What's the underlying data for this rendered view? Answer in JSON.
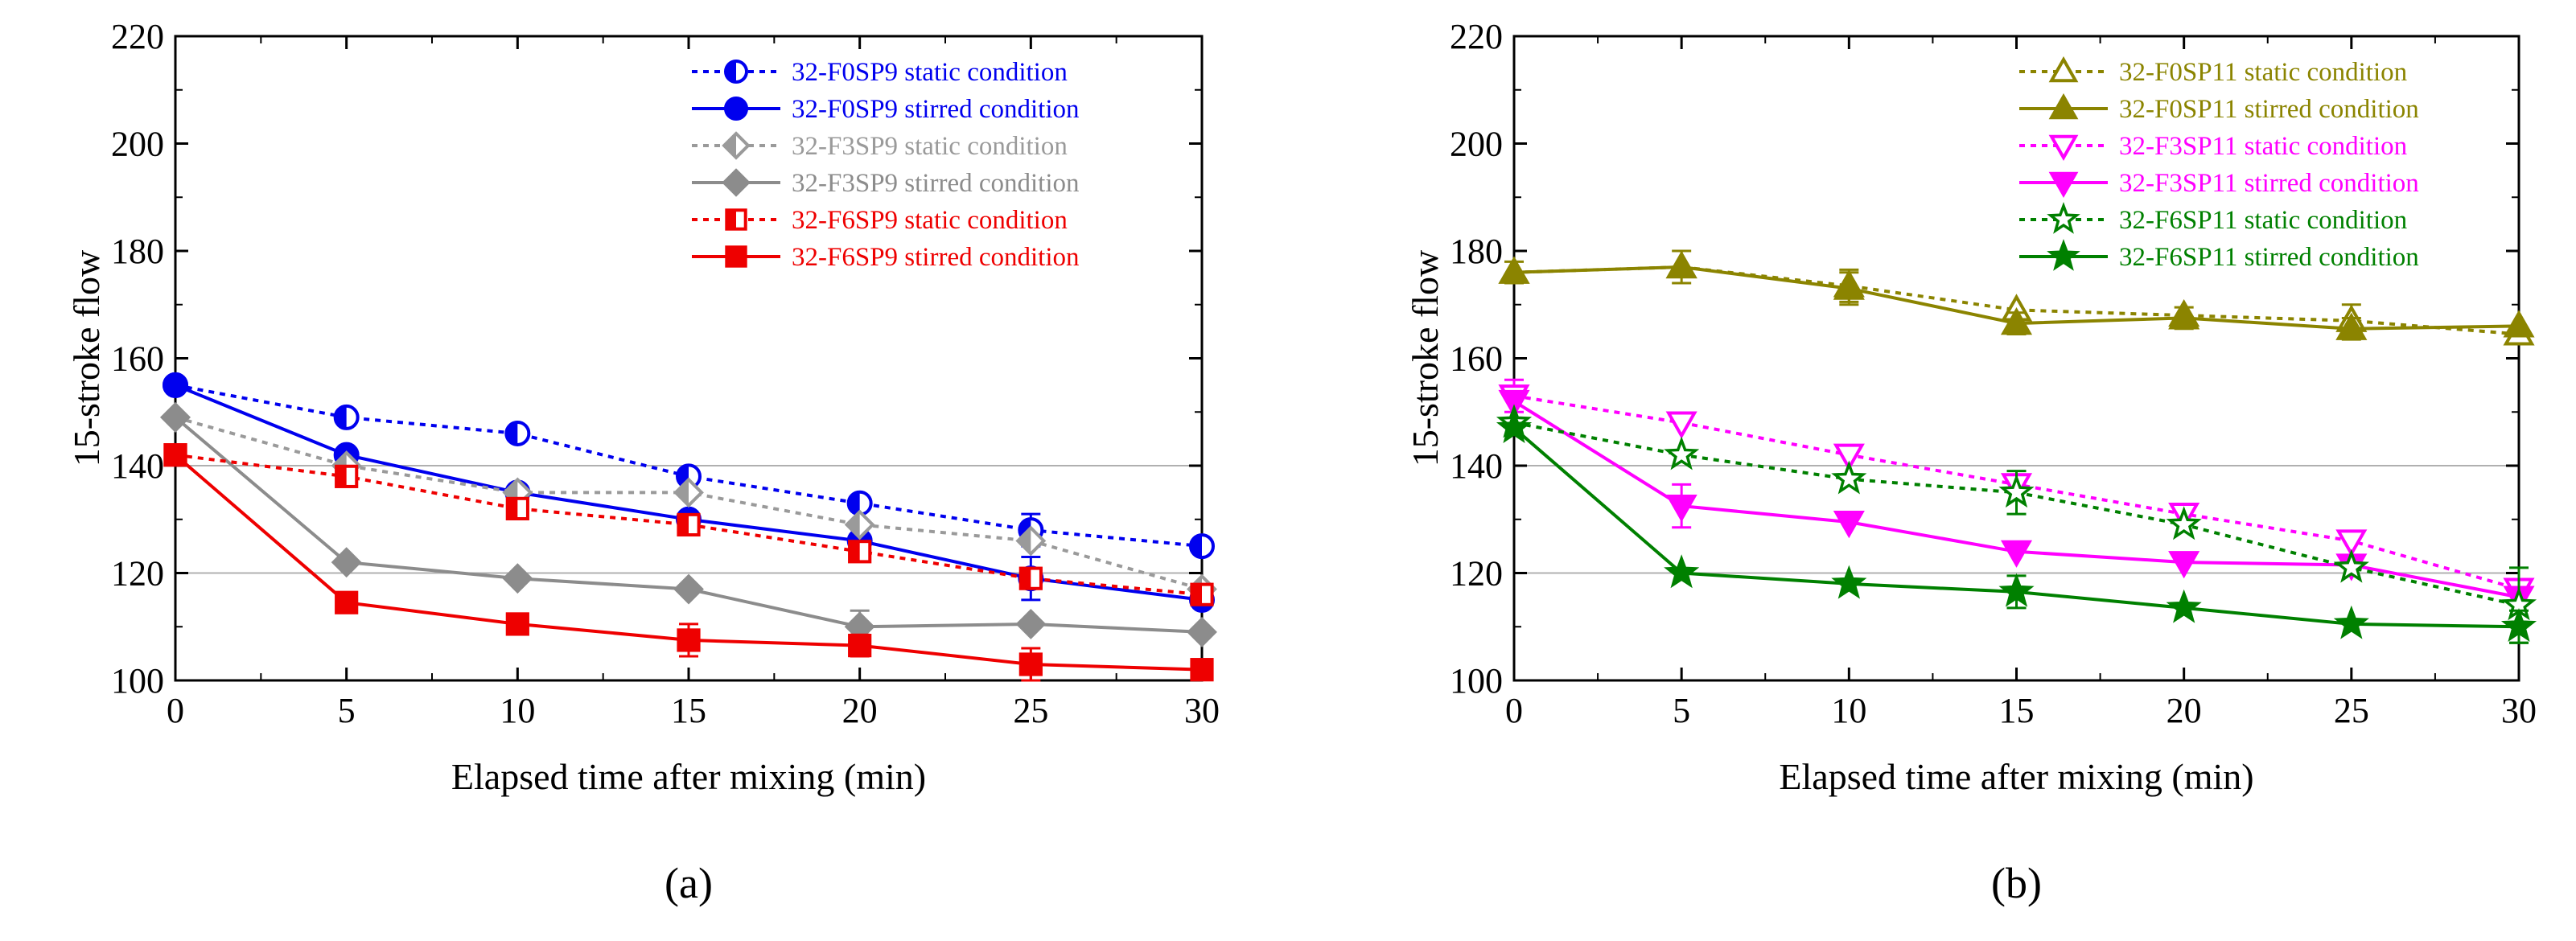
{
  "chart_data": [
    {
      "type": "line",
      "panel_label": "(a)",
      "xlabel": "Elapsed time after mixing (min)",
      "ylabel": "15-stroke flow",
      "xlim": [
        0,
        30
      ],
      "ylim": [
        100,
        220
      ],
      "xticks": [
        0,
        5,
        10,
        15,
        20,
        25,
        30
      ],
      "yticks": [
        100,
        120,
        140,
        160,
        180,
        200,
        220
      ],
      "grid": "horizontal lines at 120 and 140",
      "legend_position": "top-right",
      "x": [
        0,
        5,
        10,
        15,
        20,
        25,
        30
      ],
      "series": [
        {
          "name": "32-F0SP9 static condition",
          "color": "#0000ee",
          "dash": "dotted",
          "marker": "half-circle",
          "values": [
            155,
            149,
            146,
            138,
            133,
            128,
            125
          ],
          "error": [
            0,
            0,
            0,
            0,
            0,
            3,
            0
          ]
        },
        {
          "name": "32-F0SP9 stirred condition",
          "color": "#0000ee",
          "dash": "solid",
          "marker": "circle",
          "values": [
            155,
            142,
            135,
            130,
            126,
            119,
            115
          ],
          "error": [
            0,
            0,
            0,
            0,
            0,
            4,
            0
          ]
        },
        {
          "name": "32-F3SP9 static condition",
          "color": "#9a9a9a",
          "dash": "dotted",
          "marker": "half-diamond",
          "values": [
            149,
            140,
            135,
            135,
            129,
            126,
            117
          ],
          "error": [
            0,
            0,
            0,
            0,
            0,
            0,
            0
          ]
        },
        {
          "name": "32-F3SP9 stirred condition",
          "color": "#8c8c8c",
          "dash": "solid",
          "marker": "diamond",
          "values": [
            149,
            122,
            119,
            117,
            110,
            110.5,
            109
          ],
          "error": [
            0,
            0,
            0,
            0,
            3,
            0,
            0
          ]
        },
        {
          "name": "32-F6SP9 static condition",
          "color": "#ee0000",
          "dash": "dotted",
          "marker": "half-square",
          "values": [
            142,
            138,
            132,
            129,
            124,
            119,
            116
          ],
          "error": [
            0,
            0,
            0,
            0,
            0,
            0,
            0
          ]
        },
        {
          "name": "32-F6SP9 stirred condition",
          "color": "#ee0000",
          "dash": "solid",
          "marker": "square",
          "values": [
            142,
            114.5,
            110.5,
            107.5,
            106.5,
            103,
            102
          ],
          "error": [
            0,
            0,
            0,
            3,
            2,
            3,
            0
          ]
        }
      ]
    },
    {
      "type": "line",
      "panel_label": "(b)",
      "xlabel": "Elapsed time after mixing (min)",
      "ylabel": "15-stroke flow",
      "xlim": [
        0,
        30
      ],
      "ylim": [
        100,
        220
      ],
      "xticks": [
        0,
        5,
        10,
        15,
        20,
        25,
        30
      ],
      "yticks": [
        100,
        120,
        140,
        160,
        180,
        200,
        220
      ],
      "grid": "horizontal lines at 120 and 140",
      "legend_position": "top-right",
      "x": [
        0,
        5,
        10,
        15,
        20,
        25,
        30
      ],
      "series": [
        {
          "name": "32-F0SP11 static condition",
          "color": "#8b8400",
          "dash": "dotted",
          "marker": "triangle-open",
          "values": [
            176,
            177,
            173.5,
            169,
            168,
            167,
            164.5
          ],
          "error": [
            0,
            0,
            3,
            0,
            0,
            3,
            0
          ]
        },
        {
          "name": "32-F0SP11 stirred condition",
          "color": "#8b8400",
          "dash": "solid",
          "marker": "triangle",
          "values": [
            176,
            177,
            173,
            166.5,
            167.5,
            165.5,
            166
          ],
          "error": [
            2,
            3,
            3,
            2,
            2,
            2,
            0
          ]
        },
        {
          "name": "32-F3SP11 static condition",
          "color": "#ff00ff",
          "dash": "dotted",
          "marker": "triangle-down-open",
          "values": [
            153,
            148,
            142,
            136.5,
            131,
            126,
            117
          ],
          "error": [
            3,
            0,
            0,
            0,
            0,
            0,
            0
          ]
        },
        {
          "name": "32-F3SP11 stirred condition",
          "color": "#ff00ff",
          "dash": "solid",
          "marker": "triangle-down",
          "values": [
            152,
            132.5,
            129.5,
            124,
            122,
            121.5,
            115.5
          ],
          "error": [
            0,
            4,
            0,
            0,
            0,
            0,
            0
          ]
        },
        {
          "name": "32-F6SP11 static condition",
          "color": "#008000",
          "dash": "dotted",
          "marker": "star-open",
          "values": [
            148,
            142,
            137.5,
            135,
            129,
            121,
            114
          ],
          "error": [
            0,
            0,
            0,
            4,
            0,
            0,
            7
          ]
        },
        {
          "name": "32-F6SP11 stirred condition",
          "color": "#008000",
          "dash": "solid",
          "marker": "star",
          "values": [
            147,
            120,
            118,
            116.5,
            113.5,
            110.5,
            110
          ],
          "error": [
            0,
            0,
            0,
            3,
            0,
            0,
            3
          ]
        }
      ]
    }
  ]
}
